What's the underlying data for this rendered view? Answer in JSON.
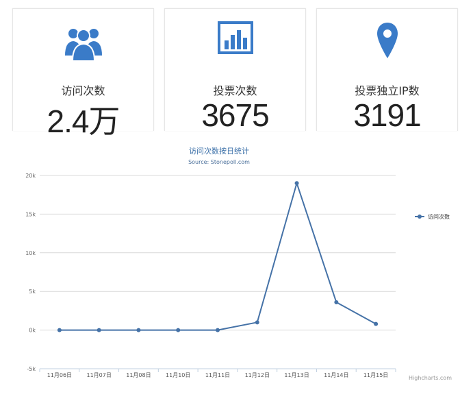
{
  "stats": [
    {
      "icon": "users-icon",
      "label": "访问次数",
      "value": "2.4万"
    },
    {
      "icon": "bar-chart-icon",
      "label": "投票次数",
      "value": "3675"
    },
    {
      "icon": "map-pin-icon",
      "label": "投票独立IP数",
      "value": "3191"
    }
  ],
  "colors": {
    "accent": "#3a7bc8",
    "line": "#4572a7",
    "grid": "#d8d8d8"
  },
  "chart_data": {
    "type": "line",
    "title": "访问次数按日统计",
    "subtitle": "Source: Stonepoll.com",
    "xlabel": "",
    "ylabel": "",
    "credits": "Highcharts.com",
    "categories": [
      "11月06日",
      "11月07日",
      "11月08日",
      "11月10日",
      "11月11日",
      "11月12日",
      "11月13日",
      "11月14日",
      "11月15日"
    ],
    "series": [
      {
        "name": "访问次数",
        "values": [
          0,
          0,
          0,
          0,
          0,
          1000,
          19000,
          3600,
          800
        ]
      }
    ],
    "ylim": [
      -5000,
      20000
    ],
    "yticks": [
      {
        "v": 20000,
        "label": "20k"
      },
      {
        "v": 15000,
        "label": "15k"
      },
      {
        "v": 10000,
        "label": "10k"
      },
      {
        "v": 5000,
        "label": "5k"
      },
      {
        "v": 0,
        "label": "0k"
      },
      {
        "v": -5000,
        "label": "-5k"
      }
    ],
    "grid": true,
    "legend_position": "right"
  }
}
